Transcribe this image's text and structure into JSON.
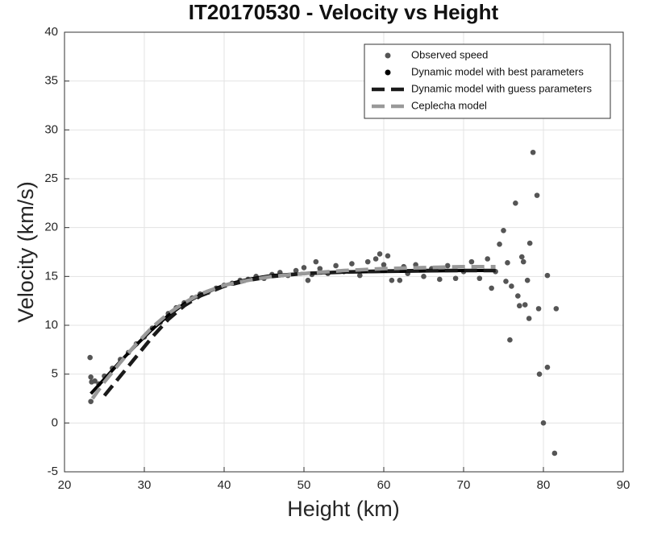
{
  "chart_data": {
    "type": "scatter",
    "title": "IT20170530 - Velocity vs Height",
    "x_label": "Height (km)",
    "y_label": "Velocity (km/s)",
    "xlim": [
      20,
      90
    ],
    "xticks": [
      20,
      30,
      40,
      50,
      60,
      70,
      80,
      90
    ],
    "ylim": [
      -5,
      40
    ],
    "yticks": [
      -5,
      0,
      5,
      10,
      15,
      20,
      25,
      30,
      35,
      40
    ],
    "grid": true,
    "legend": "upper right",
    "series": [
      {
        "name": "Observed speed",
        "color": "#555555",
        "mode": "markers",
        "legend_symbol": "dot",
        "x": [
          23.2,
          23.3,
          23.4,
          23.3,
          23.8,
          24.3,
          25,
          26,
          27,
          28,
          29,
          30,
          31,
          32,
          33,
          34,
          35,
          36,
          37,
          38,
          39,
          40,
          41,
          42,
          43,
          44,
          45,
          46,
          47,
          48,
          49,
          50,
          50.5,
          51,
          51.5,
          52,
          53,
          54,
          55,
          56,
          57,
          58,
          59,
          59.5,
          60,
          60.5,
          61,
          62,
          62.5,
          63,
          64,
          65,
          66,
          67,
          68,
          69,
          70,
          71,
          72,
          73,
          73.5,
          74,
          74.5,
          75,
          75.5,
          75.8,
          76,
          76.5,
          77,
          77.5,
          77.7,
          78,
          78.2,
          78.3,
          78.7,
          79.2,
          79.4,
          79.5,
          80,
          80.5,
          80.5,
          81.4,
          81.6,
          77.3,
          76.8,
          75.3
        ],
        "values": [
          6.7,
          4.7,
          4.2,
          2.2,
          4.3,
          4.0,
          4.8,
          5.6,
          6.5,
          7.2,
          8.1,
          8.8,
          9.7,
          10.3,
          11.2,
          11.8,
          12.3,
          12.8,
          13.2,
          13.4,
          13.8,
          14.1,
          14.3,
          14.6,
          14.7,
          15.0,
          14.8,
          15.2,
          15.4,
          15.1,
          15.6,
          15.9,
          14.6,
          15.2,
          16.5,
          15.8,
          15.3,
          16.1,
          15.5,
          16.3,
          15.1,
          16.5,
          16.8,
          17.3,
          16.2,
          17.1,
          14.6,
          14.6,
          16.0,
          15.3,
          16.2,
          15.0,
          15.8,
          14.7,
          16.1,
          14.8,
          15.5,
          16.5,
          14.8,
          16.8,
          13.8,
          15.5,
          18.3,
          19.7,
          16.4,
          8.5,
          14.0,
          22.5,
          12.0,
          16.5,
          12.1,
          14.6,
          10.7,
          18.4,
          27.7,
          23.3,
          11.7,
          5.0,
          0.0,
          15.1,
          5.7,
          -3.1,
          11.7,
          17.0,
          13.0,
          14.5
        ]
      },
      {
        "name": "Dynamic model with best parameters",
        "color": "#000000",
        "mode": "line",
        "dash": "solid",
        "legend_symbol": "dot",
        "x": [
          23.3,
          25,
          27,
          29,
          31,
          33,
          35,
          37,
          40,
          43,
          46,
          50,
          55,
          60,
          65,
          70,
          74
        ],
        "values": [
          3,
          4.5,
          6.3,
          8,
          9.6,
          11,
          12.2,
          13.1,
          14.1,
          14.7,
          15.1,
          15.3,
          15.45,
          15.5,
          15.55,
          15.6,
          15.6
        ]
      },
      {
        "name": "Dynamic model with guess parameters",
        "color": "#1a1a1a",
        "mode": "line",
        "dash": "dashed",
        "legend_symbol": "dash",
        "x": [
          25,
          27,
          29,
          31,
          33,
          35,
          37,
          40,
          43,
          46,
          50,
          55,
          60,
          65,
          70,
          74
        ],
        "values": [
          2.8,
          4.8,
          6.8,
          8.8,
          10.6,
          12,
          13,
          14,
          14.6,
          15,
          15.3,
          15.45,
          15.55,
          15.6,
          15.6,
          15.6
        ]
      },
      {
        "name": "Ceplecha model",
        "color": "#999999",
        "mode": "line",
        "dash": "dashed",
        "legend_symbol": "dash",
        "x": [
          23.5,
          25,
          27,
          29,
          31,
          33,
          35,
          37,
          40,
          43,
          46,
          50,
          55,
          60,
          65,
          70,
          74
        ],
        "values": [
          2.5,
          4.2,
          6.2,
          8.1,
          9.8,
          11.2,
          12.3,
          13.2,
          14.1,
          14.6,
          15,
          15.3,
          15.6,
          15.8,
          15.9,
          16,
          16
        ]
      }
    ]
  }
}
